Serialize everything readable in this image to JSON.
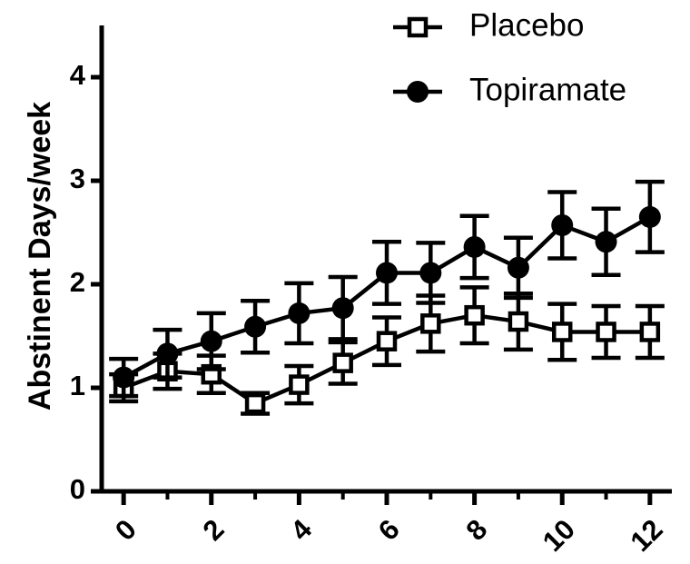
{
  "chart_data": {
    "type": "line",
    "title": "",
    "xlabel": "",
    "ylabel": "Abstinent Days/week",
    "xlim": [
      -0.5,
      12.5
    ],
    "ylim": [
      0,
      4.5
    ],
    "x_ticks": [
      0,
      2,
      4,
      6,
      8,
      10,
      12
    ],
    "x_tick_labels": [
      "0",
      "2",
      "4",
      "6",
      "8",
      "10",
      "12"
    ],
    "y_ticks": [
      0,
      1,
      2,
      3,
      4
    ],
    "y_tick_labels": [
      "0",
      "1",
      "2",
      "3",
      "4"
    ],
    "grid": false,
    "legend_position": "top-right",
    "x": [
      0,
      1,
      2,
      3,
      4,
      5,
      6,
      7,
      8,
      9,
      10,
      11,
      12
    ],
    "series": [
      {
        "name": "Placebo",
        "marker": "open-square",
        "color": "#000000",
        "values": [
          1.0,
          1.16,
          1.13,
          0.85,
          1.03,
          1.24,
          1.45,
          1.62,
          1.7,
          1.64,
          1.54,
          1.54,
          1.54
        ],
        "error": [
          0.13,
          0.17,
          0.18,
          0.1,
          0.18,
          0.2,
          0.23,
          0.27,
          0.27,
          0.27,
          0.27,
          0.25,
          0.25
        ]
      },
      {
        "name": "Topiramate",
        "marker": "filled-circle",
        "color": "#000000",
        "values": [
          1.1,
          1.33,
          1.45,
          1.59,
          1.72,
          1.77,
          2.11,
          2.11,
          2.36,
          2.16,
          2.57,
          2.41,
          2.65
        ],
        "error": [
          0.18,
          0.23,
          0.27,
          0.25,
          0.29,
          0.3,
          0.3,
          0.29,
          0.3,
          0.29,
          0.32,
          0.32,
          0.34
        ]
      }
    ]
  }
}
